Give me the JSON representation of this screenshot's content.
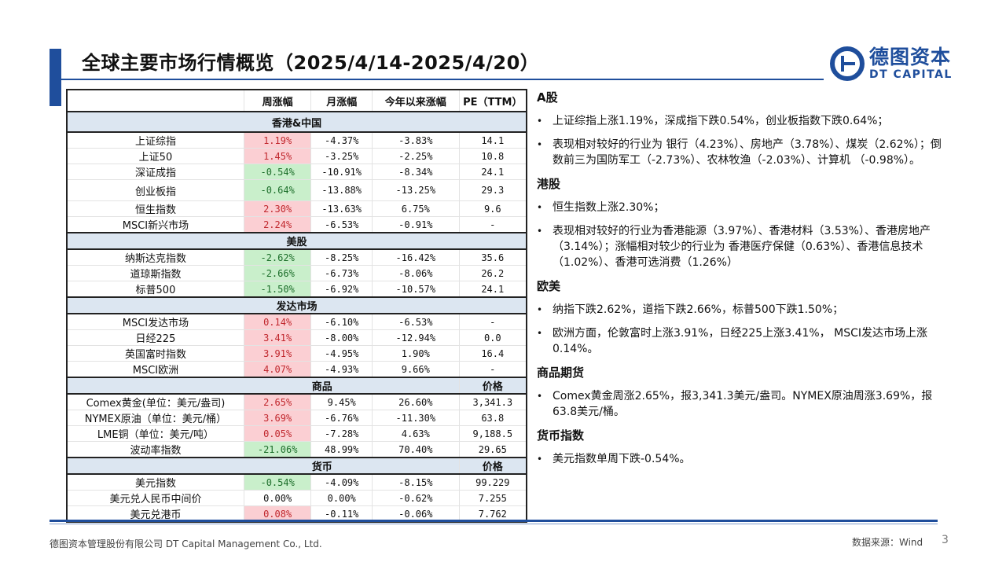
{
  "title": "全球主要市场行情概览（2025/4/14-2025/4/20）",
  "logo": {
    "cn": "德图资本",
    "en": "DT CAPITAL"
  },
  "table": {
    "headers": [
      "",
      "周涨幅",
      "月涨幅",
      "今年以来涨幅",
      "PE（TTM）"
    ],
    "sections": [
      {
        "label": "香港&中国",
        "extra": "",
        "rows": [
          {
            "name": "上证综指",
            "week": "1.19%",
            "trend": "up",
            "month": "-4.37%",
            "ytd": "-3.83%",
            "last": "14.1"
          },
          {
            "name": "上证50",
            "week": "1.45%",
            "trend": "up",
            "month": "-3.25%",
            "ytd": "-2.25%",
            "last": "10.8"
          },
          {
            "name": "深证成指",
            "week": "-0.54%",
            "trend": "down",
            "month": "-10.91%",
            "ytd": "-8.34%",
            "last": "24.1"
          },
          {
            "name": "创业板指",
            "week": "-0.64%",
            "trend": "down",
            "month": "-13.88%",
            "ytd": "-13.25%",
            "last": "29.3"
          },
          {
            "name": "恒生指数",
            "week": "2.30%",
            "trend": "up",
            "month": "-13.63%",
            "ytd": "6.75%",
            "last": "9.6"
          },
          {
            "name": "MSCI新兴市场",
            "week": "2.24%",
            "trend": "up",
            "month": "-6.53%",
            "ytd": "-0.91%",
            "last": "-"
          }
        ]
      },
      {
        "label": "美股",
        "extra": "",
        "rows": [
          {
            "name": "纳斯达克指数",
            "week": "-2.62%",
            "trend": "down",
            "month": "-8.25%",
            "ytd": "-16.42%",
            "last": "35.6"
          },
          {
            "name": "道琼斯指数",
            "week": "-2.66%",
            "trend": "down",
            "month": "-6.73%",
            "ytd": "-8.06%",
            "last": "26.2"
          },
          {
            "name": "标普500",
            "week": "-1.50%",
            "trend": "down",
            "month": "-6.92%",
            "ytd": "-10.57%",
            "last": "24.1"
          }
        ]
      },
      {
        "label": "发达市场",
        "extra": "",
        "rows": [
          {
            "name": "MSCI发达市场",
            "week": "0.14%",
            "trend": "up",
            "month": "-6.10%",
            "ytd": "-6.53%",
            "last": "-"
          },
          {
            "name": "日经225",
            "week": "3.41%",
            "trend": "up",
            "month": "-8.00%",
            "ytd": "-12.94%",
            "last": "0.0"
          },
          {
            "name": "英国富时指数",
            "week": "3.91%",
            "trend": "up",
            "month": "-4.95%",
            "ytd": "1.90%",
            "last": "16.4"
          },
          {
            "name": "MSCI欧洲",
            "week": "4.07%",
            "trend": "up",
            "month": "-4.93%",
            "ytd": "9.66%",
            "last": "-"
          }
        ]
      },
      {
        "label": "商品",
        "extra": "价格",
        "rows": [
          {
            "name": "Comex黄金(单位：美元/盎司)",
            "week": "2.65%",
            "trend": "up",
            "month": "9.45%",
            "ytd": "26.60%",
            "last": "3,341.3"
          },
          {
            "name": "NYMEX原油（单位：美元/桶）",
            "week": "3.69%",
            "trend": "up",
            "month": "-6.76%",
            "ytd": "-11.30%",
            "last": "63.8"
          },
          {
            "name": "LME铜（单位：美元/吨）",
            "week": "0.05%",
            "trend": "up",
            "month": "-7.28%",
            "ytd": "4.63%",
            "last": "9,188.5"
          },
          {
            "name": "波动率指数",
            "week": "-21.06%",
            "trend": "down",
            "month": "48.99%",
            "ytd": "70.40%",
            "last": "29.65"
          }
        ]
      },
      {
        "label": "货币",
        "extra": "价格",
        "rows": [
          {
            "name": "美元指数",
            "week": "-0.54%",
            "trend": "down",
            "month": "-4.09%",
            "ytd": "-8.15%",
            "last": "99.229"
          },
          {
            "name": "美元兑人民币中间价",
            "week": "0.00%",
            "trend": "flat",
            "month": "0.00%",
            "ytd": "-0.62%",
            "last": "7.255"
          },
          {
            "name": "美元兑港币",
            "week": "0.08%",
            "trend": "up",
            "month": "-0.11%",
            "ytd": "-0.06%",
            "last": "7.762"
          }
        ]
      }
    ]
  },
  "commentary": [
    {
      "title": "A股",
      "bullets": [
        "上证综指上涨1.19%，深成指下跌0.54%，创业板指数下跌0.64%；",
        "表现相对较好的行业为 银行（4.23%）、房地产（3.78%）、煤炭（2.62%）；倒数前三为国防军工（-2.73%）、农林牧渔（-2.03%）、计算机 （-0.98%）。"
      ]
    },
    {
      "title": "港股",
      "bullets": [
        "恒生指数上涨2.30%；",
        "表现相对较好的行业为香港能源（3.97%）、香港材料（3.53%）、香港房地产（3.14%）；涨幅相对较少的行业为 香港医疗保健（0.63%）、香港信息技术（1.02%）、香港可选消费（1.26%）"
      ]
    },
    {
      "title": "欧美",
      "bullets": [
        "纳指下跌2.62%，道指下跌2.66%，标普500下跌1.50%；",
        "欧洲方面，伦敦富时上涨3.91%，日经225上涨3.41%， MSCI发达市场上涨0.14%。"
      ]
    },
    {
      "title": "商品期货",
      "bullets": [
        "Comex黄金周涨2.65%，报3,341.3美元/盎司。NYMEX原油周涨3.69%，报63.8美元/桶。"
      ]
    },
    {
      "title": "货币指数",
      "bullets": [
        "美元指数单周下跌-0.54%。"
      ]
    }
  ],
  "footer": {
    "company": "德图资本管理股份有限公司 DT Capital Management Co., Ltd.",
    "source": "数据来源：Wind",
    "page": "3"
  }
}
